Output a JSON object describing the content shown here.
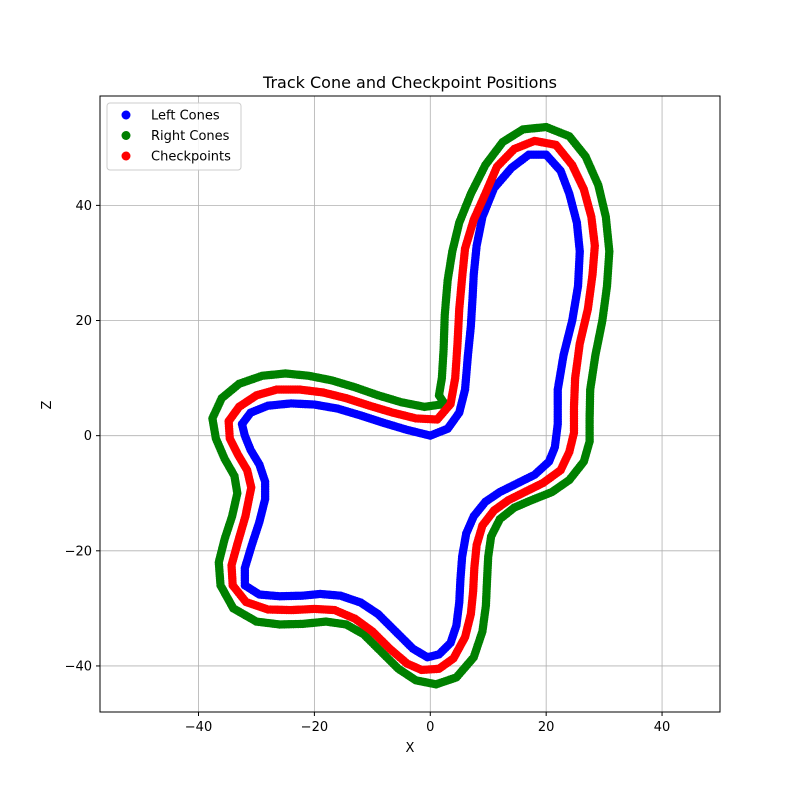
{
  "chart_data": {
    "type": "scatter",
    "title": "Track Cone and Checkpoint Positions",
    "xlabel": "X",
    "ylabel": "Z",
    "xlim": [
      -57,
      50
    ],
    "ylim": [
      -48,
      59
    ],
    "xticks": [
      -40,
      -20,
      0,
      20,
      40
    ],
    "yticks": [
      -40,
      -20,
      0,
      20,
      40
    ],
    "grid": true,
    "legend_position": "upper-left",
    "series": [
      {
        "name": "Left Cones",
        "color": "#0000ff",
        "points": [
          [
            0,
            0
          ],
          [
            -4,
            1
          ],
          [
            -8,
            2.2
          ],
          [
            -12,
            3.5
          ],
          [
            -16,
            4.7
          ],
          [
            -20,
            5.4
          ],
          [
            -24,
            5.6
          ],
          [
            -28,
            5.2
          ],
          [
            -31,
            4
          ],
          [
            -32.5,
            2
          ],
          [
            -32,
            0
          ],
          [
            -31,
            -2.5
          ],
          [
            -29.5,
            -5
          ],
          [
            -28.5,
            -8
          ],
          [
            -28.5,
            -11
          ],
          [
            -29.5,
            -15
          ],
          [
            -30.8,
            -19
          ],
          [
            -32,
            -23
          ],
          [
            -32,
            -26
          ],
          [
            -29.5,
            -27.6
          ],
          [
            -26,
            -27.9
          ],
          [
            -22,
            -27.8
          ],
          [
            -19,
            -27.5
          ],
          [
            -15.5,
            -27.8
          ],
          [
            -12,
            -29
          ],
          [
            -9,
            -31
          ],
          [
            -6,
            -34
          ],
          [
            -3,
            -37
          ],
          [
            -0.5,
            -38.5
          ],
          [
            1.5,
            -38
          ],
          [
            3.5,
            -36
          ],
          [
            4.5,
            -33
          ],
          [
            5,
            -29
          ],
          [
            5.2,
            -25
          ],
          [
            5.5,
            -21
          ],
          [
            6.2,
            -17
          ],
          [
            7.5,
            -14
          ],
          [
            9.5,
            -11.5
          ],
          [
            12,
            -9.8
          ],
          [
            15,
            -8.3
          ],
          [
            18,
            -6.8
          ],
          [
            20.5,
            -4.5
          ],
          [
            21.5,
            -2
          ],
          [
            22,
            2
          ],
          [
            22,
            8
          ],
          [
            23,
            14
          ],
          [
            24.5,
            20
          ],
          [
            25.5,
            26
          ],
          [
            25.8,
            32
          ],
          [
            25.3,
            37
          ],
          [
            24,
            42
          ],
          [
            22.5,
            46
          ],
          [
            20,
            48.8
          ],
          [
            17,
            48.8
          ],
          [
            14,
            46.5
          ],
          [
            11,
            43
          ],
          [
            9,
            38
          ],
          [
            8,
            33
          ],
          [
            7.5,
            28
          ],
          [
            7.3,
            24
          ],
          [
            7,
            19
          ],
          [
            6.5,
            14
          ],
          [
            6,
            8
          ],
          [
            5,
            4
          ],
          [
            3,
            1.2
          ]
        ]
      },
      {
        "name": "Right Cones",
        "color": "#008000",
        "points": [
          [
            2.5,
            5.5
          ],
          [
            -1,
            5
          ],
          [
            -5,
            5.8
          ],
          [
            -9,
            7
          ],
          [
            -13,
            8.4
          ],
          [
            -17,
            9.6
          ],
          [
            -21,
            10.4
          ],
          [
            -25,
            10.8
          ],
          [
            -29,
            10.4
          ],
          [
            -33,
            9
          ],
          [
            -36,
            6.5
          ],
          [
            -37.6,
            3
          ],
          [
            -37,
            -0.5
          ],
          [
            -35.5,
            -4
          ],
          [
            -33.8,
            -7
          ],
          [
            -33.3,
            -10
          ],
          [
            -34.2,
            -14
          ],
          [
            -35.5,
            -18
          ],
          [
            -36.5,
            -22
          ],
          [
            -36.2,
            -26
          ],
          [
            -34,
            -30
          ],
          [
            -30,
            -32.3
          ],
          [
            -26,
            -32.8
          ],
          [
            -22,
            -32.7
          ],
          [
            -18,
            -32.3
          ],
          [
            -14.5,
            -32.8
          ],
          [
            -11.5,
            -34.5
          ],
          [
            -8.5,
            -37.5
          ],
          [
            -5.5,
            -40.5
          ],
          [
            -2.5,
            -42.5
          ],
          [
            1,
            -43.2
          ],
          [
            4.5,
            -42
          ],
          [
            7.5,
            -38.5
          ],
          [
            9,
            -34
          ],
          [
            9.6,
            -29.5
          ],
          [
            9.8,
            -25
          ],
          [
            10,
            -21
          ],
          [
            10.5,
            -17.5
          ],
          [
            12,
            -14.5
          ],
          [
            14.5,
            -12.5
          ],
          [
            17.5,
            -11.2
          ],
          [
            21,
            -9.8
          ],
          [
            24,
            -7.7
          ],
          [
            26.5,
            -4.5
          ],
          [
            27.5,
            -1
          ],
          [
            27.5,
            3
          ],
          [
            27.6,
            8
          ],
          [
            28.5,
            14
          ],
          [
            29.7,
            20
          ],
          [
            30.5,
            26
          ],
          [
            30.9,
            32
          ],
          [
            30.3,
            38
          ],
          [
            29,
            43.5
          ],
          [
            26.8,
            48.5
          ],
          [
            24,
            52
          ],
          [
            20,
            53.6
          ],
          [
            16,
            53.2
          ],
          [
            12.5,
            51
          ],
          [
            9.5,
            47
          ],
          [
            7,
            42
          ],
          [
            5,
            37
          ],
          [
            3.8,
            32
          ],
          [
            3,
            27
          ],
          [
            2.5,
            21
          ],
          [
            2.3,
            15
          ],
          [
            2,
            10
          ],
          [
            1.5,
            7
          ]
        ]
      },
      {
        "name": "Checkpoints",
        "color": "#ff0000",
        "points": [
          [
            1.2,
            2.8
          ],
          [
            -2.5,
            3
          ],
          [
            -6.5,
            4
          ],
          [
            -10.5,
            5.2
          ],
          [
            -14.5,
            6.5
          ],
          [
            -18.5,
            7.5
          ],
          [
            -22.5,
            8
          ],
          [
            -26.5,
            8
          ],
          [
            -30,
            7
          ],
          [
            -33,
            5
          ],
          [
            -34.8,
            2.5
          ],
          [
            -34.6,
            -0.5
          ],
          [
            -33.2,
            -3.3
          ],
          [
            -31.6,
            -6
          ],
          [
            -30.9,
            -9
          ],
          [
            -31.9,
            -14
          ],
          [
            -33.2,
            -18.5
          ],
          [
            -34.3,
            -22.5
          ],
          [
            -34.1,
            -26
          ],
          [
            -31.8,
            -28.9
          ],
          [
            -28,
            -30.2
          ],
          [
            -24,
            -30.3
          ],
          [
            -20,
            -30.1
          ],
          [
            -16.5,
            -30.3
          ],
          [
            -13,
            -31.8
          ],
          [
            -10,
            -34
          ],
          [
            -7,
            -37
          ],
          [
            -4,
            -39.6
          ],
          [
            -1.5,
            -40.7
          ],
          [
            1.5,
            -40.5
          ],
          [
            4,
            -38.7
          ],
          [
            6,
            -35
          ],
          [
            7,
            -31
          ],
          [
            7.4,
            -27
          ],
          [
            7.6,
            -23
          ],
          [
            8,
            -19
          ],
          [
            9,
            -15.6
          ],
          [
            11,
            -13
          ],
          [
            13.5,
            -11.2
          ],
          [
            16.5,
            -9.7
          ],
          [
            19.5,
            -8.2
          ],
          [
            22.5,
            -6
          ],
          [
            24,
            -2.8
          ],
          [
            24.8,
            0.5
          ],
          [
            24.8,
            5
          ],
          [
            25,
            10
          ],
          [
            25.8,
            16
          ],
          [
            27.2,
            22
          ],
          [
            28,
            28
          ],
          [
            28.4,
            33
          ],
          [
            27.8,
            38
          ],
          [
            26.5,
            42.8
          ],
          [
            24.5,
            47
          ],
          [
            21.7,
            50.5
          ],
          [
            18,
            51.2
          ],
          [
            14.5,
            49.8
          ],
          [
            11.5,
            46.7
          ],
          [
            9.5,
            42
          ],
          [
            7.5,
            37.5
          ],
          [
            6,
            32.5
          ],
          [
            5.5,
            27.5
          ],
          [
            5,
            22
          ],
          [
            4.7,
            16
          ],
          [
            4.3,
            10
          ],
          [
            3.5,
            5.5
          ]
        ]
      }
    ]
  }
}
